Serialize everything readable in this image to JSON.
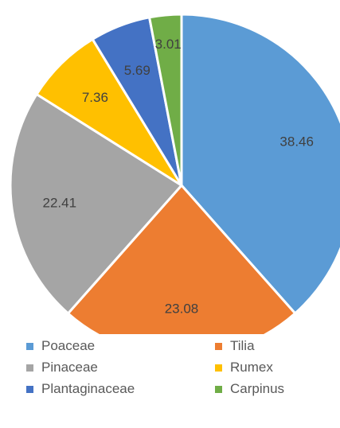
{
  "chart_data": {
    "type": "pie",
    "title": "",
    "categories": [
      "Poaceae",
      "Tilia",
      "Pinaceae",
      "Rumex",
      "Plantaginaceae",
      "Carpinus"
    ],
    "values": [
      38.46,
      23.08,
      22.41,
      7.36,
      5.69,
      3.01
    ],
    "labels": [
      "38.46",
      "23.08",
      "22.41",
      "7.36",
      "5.69",
      "3.01"
    ],
    "colors": [
      "#5B9BD5",
      "#ED7D31",
      "#A5A5A5",
      "#FFC000",
      "#4472C4",
      "#70AD47"
    ],
    "start_angle_deg": 0,
    "direction": "clockwise",
    "legend_position": "bottom",
    "legend_columns": 2
  }
}
